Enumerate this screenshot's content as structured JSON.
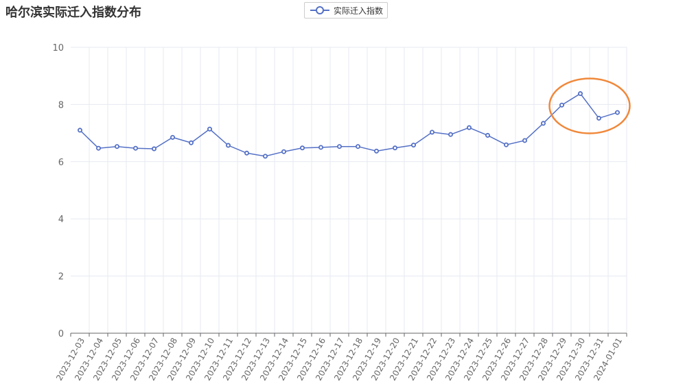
{
  "chart_data": {
    "type": "line",
    "title": "哈尔滨实际迁入指数分布",
    "xlabel": "",
    "ylabel": "",
    "ylim": [
      0,
      10
    ],
    "yticks": [
      0,
      2,
      4,
      6,
      8,
      10
    ],
    "grid": true,
    "legend_position": "top-center",
    "annotation": "orange circle highlighting 2023-12-29 to 2024-01-01",
    "categories": [
      "2023-12-03",
      "2023-12-04",
      "2023-12-05",
      "2023-12-06",
      "2023-12-07",
      "2023-12-08",
      "2023-12-09",
      "2023-12-10",
      "2023-12-11",
      "2023-12-12",
      "2023-12-13",
      "2023-12-14",
      "2023-12-15",
      "2023-12-16",
      "2023-12-17",
      "2023-12-18",
      "2023-12-19",
      "2023-12-20",
      "2023-12-21",
      "2023-12-22",
      "2023-12-23",
      "2023-12-24",
      "2023-12-25",
      "2023-12-26",
      "2023-12-27",
      "2023-12-28",
      "2023-12-29",
      "2023-12-30",
      "2023-12-31",
      "2024-01-01"
    ],
    "series": [
      {
        "name": "实际迁入指数",
        "color": "#5470c6",
        "values": [
          7.1,
          6.47,
          6.53,
          6.47,
          6.45,
          6.85,
          6.66,
          7.14,
          6.57,
          6.3,
          6.19,
          6.35,
          6.48,
          6.5,
          6.53,
          6.53,
          6.37,
          6.48,
          6.58,
          7.03,
          6.95,
          7.19,
          6.92,
          6.59,
          6.74,
          7.34,
          7.98,
          8.38,
          7.52,
          7.72
        ]
      }
    ]
  },
  "colors": {
    "line": "#5470c6",
    "grid": "#e6e9f0",
    "axis": "#666666",
    "annotation": "#f0883a"
  }
}
